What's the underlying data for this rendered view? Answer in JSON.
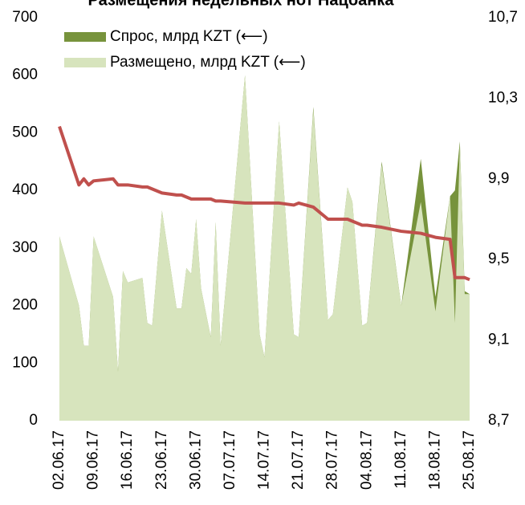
{
  "chart_data": {
    "type": "area",
    "title": "Размещения недельных нот Нацбанка",
    "x": [
      "02.06.17",
      "06.06.17",
      "07.06.17",
      "08.06.17",
      "09.06.17",
      "13.06.17",
      "14.06.17",
      "15.06.17",
      "16.06.17",
      "19.06.17",
      "20.06.17",
      "21.06.17",
      "23.06.17",
      "26.06.17",
      "27.06.17",
      "28.06.17",
      "29.06.17",
      "30.06.17",
      "01.07.17",
      "03.07.17",
      "04.07.17",
      "05.07.17",
      "10.07.17",
      "13.07.17",
      "14.07.17",
      "17.07.17",
      "20.07.17",
      "21.07.17",
      "24.07.17",
      "27.07.17",
      "28.07.17",
      "31.07.17",
      "01.08.17",
      "03.08.17",
      "04.08.17",
      "07.08.17",
      "11.08.17",
      "15.08.17",
      "18.08.17",
      "21.08.17",
      "22.08.17",
      "23.08.17",
      "24.08.17",
      "25.08.17"
    ],
    "series": [
      {
        "name": "Спрос, млрд KZT (⟵)",
        "color": "#77933c",
        "values": [
          320,
          200,
          130,
          130,
          320,
          215,
          85,
          260,
          240,
          248,
          170,
          165,
          365,
          195,
          195,
          265,
          255,
          350,
          230,
          145,
          345,
          130,
          600,
          150,
          110,
          520,
          150,
          145,
          545,
          175,
          185,
          405,
          380,
          165,
          170,
          450,
          200,
          455,
          215,
          390,
          400,
          485,
          225,
          220
        ]
      },
      {
        "name": "Размещено, млрд KZT (⟵)",
        "color": "#d7e4bd",
        "values": [
          320,
          200,
          130,
          130,
          320,
          215,
          85,
          260,
          240,
          248,
          170,
          165,
          365,
          195,
          195,
          265,
          255,
          350,
          230,
          145,
          345,
          130,
          600,
          150,
          110,
          520,
          150,
          145,
          540,
          175,
          185,
          405,
          380,
          165,
          170,
          445,
          200,
          380,
          190,
          390,
          170,
          480,
          220,
          220
        ]
      },
      {
        "color": "#c0504d",
        "axis": "y2",
        "values": [
          10.16,
          9.87,
          9.9,
          9.87,
          9.89,
          9.9,
          9.87,
          9.87,
          9.87,
          9.86,
          9.86,
          9.85,
          9.83,
          9.82,
          9.82,
          9.81,
          9.8,
          9.8,
          9.8,
          9.8,
          9.79,
          9.79,
          9.78,
          9.78,
          9.78,
          9.78,
          9.77,
          9.78,
          9.76,
          9.7,
          9.7,
          9.7,
          9.69,
          9.67,
          9.67,
          9.66,
          9.64,
          9.63,
          9.61,
          9.6,
          9.41,
          9.41,
          9.41,
          9.4
        ]
      }
    ],
    "xlim": [
      "02.06.17",
      "25.08.17"
    ],
    "xticks": [
      "02.06.17",
      "09.06.17",
      "16.06.17",
      "23.06.17",
      "30.06.17",
      "07.07.17",
      "14.07.17",
      "21.07.17",
      "28.07.17",
      "04.08.17",
      "11.08.17",
      "18.08.17",
      "25.08.17"
    ],
    "ylim": [
      0,
      700
    ],
    "yticks": [
      0,
      100,
      200,
      300,
      400,
      500,
      600,
      700
    ],
    "y2lim": [
      8.7,
      10.7
    ],
    "y2ticks": [
      {
        "value": 8.7,
        "label": "8,7"
      },
      {
        "value": 9.1,
        "label": "9,1"
      },
      {
        "value": 9.5,
        "label": "9,5"
      },
      {
        "value": 9.9,
        "label": "9,9"
      },
      {
        "value": 10.3,
        "label": "10,3"
      },
      {
        "value": 10.7,
        "label": "10,7"
      }
    ],
    "legend": "upper left"
  }
}
